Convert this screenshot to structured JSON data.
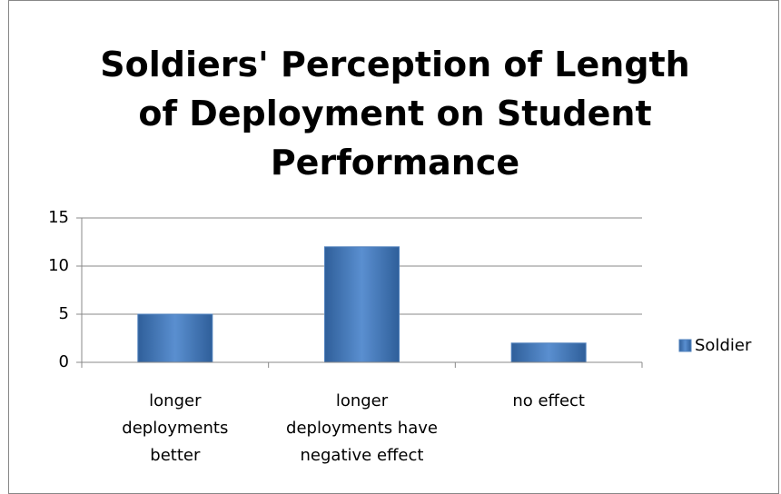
{
  "chart_data": {
    "type": "bar",
    "title": "Soldiers' Perception of Length of Deployment on Student Performance",
    "categories": [
      "longer deployments better",
      "longer deployments have negative effect",
      "no effect"
    ],
    "series": [
      {
        "name": "Soldier",
        "color": "#4f81bd",
        "values": [
          5,
          12,
          2
        ]
      }
    ],
    "ylim": [
      0,
      15
    ],
    "yticks": [
      0,
      5,
      10,
      15
    ],
    "grid": true,
    "legend": "right"
  }
}
